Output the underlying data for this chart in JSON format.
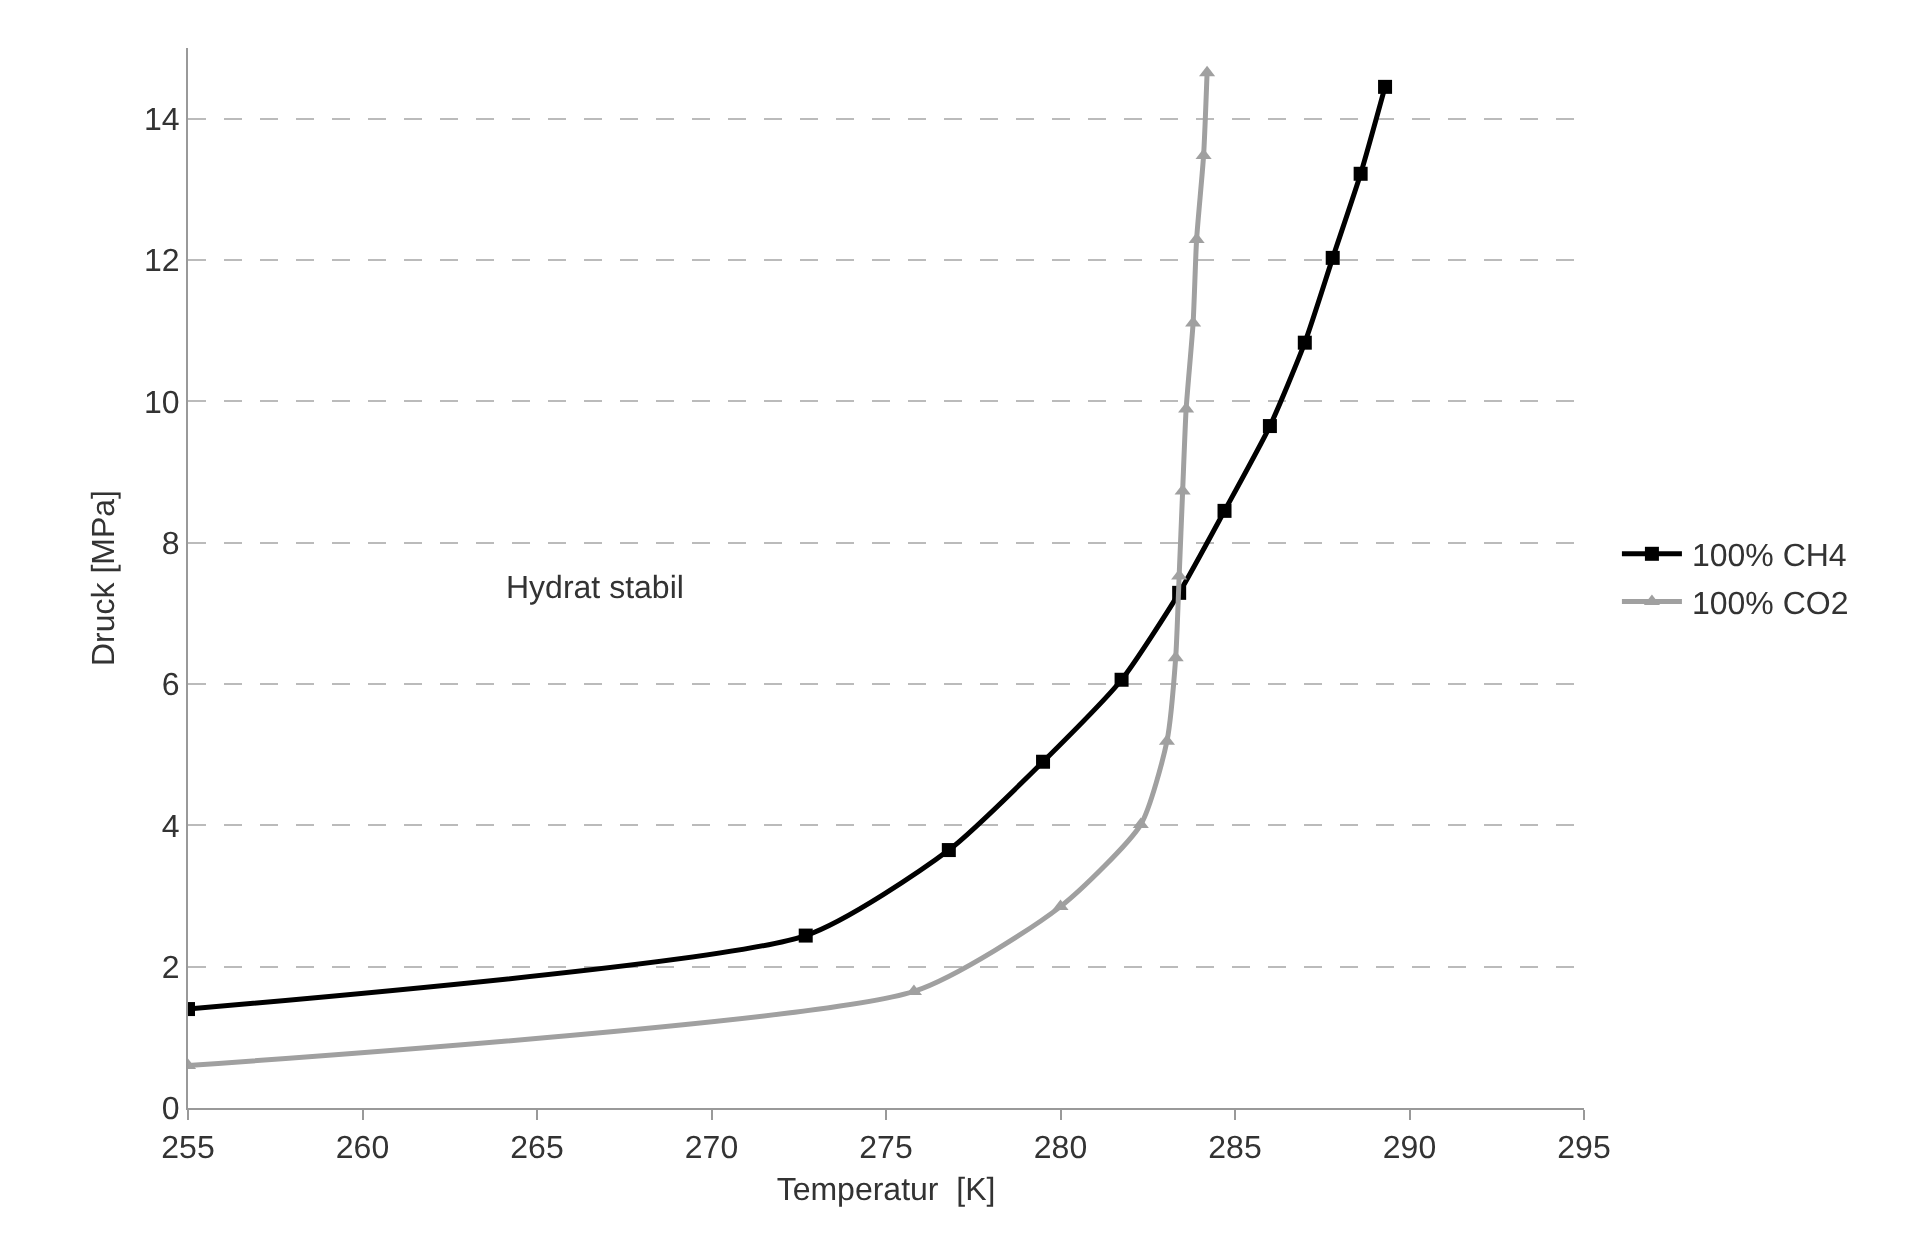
{
  "chart_data": {
    "type": "line",
    "xlabel": "Temperatur  [K]",
    "ylabel": "Druck [MPa]",
    "xlim": [
      255,
      295
    ],
    "xticks": [
      255,
      260,
      265,
      270,
      275,
      280,
      285,
      290,
      295
    ],
    "ylim": [
      0,
      15
    ],
    "yticks": [
      0,
      2,
      4,
      6,
      8,
      10,
      12,
      14
    ],
    "grid": "y",
    "legend": "right",
    "annotations": [
      "Hydrat stabil"
    ],
    "series": [
      {
        "name": "100% CH4",
        "color": "#000000",
        "marker": "square",
        "x": [
          255,
          272.7,
          276.8,
          279.5,
          281.75,
          283.4,
          284.7,
          286.0,
          287.0,
          287.8,
          288.6,
          289.3
        ],
        "values": [
          1.4,
          2.44,
          3.65,
          4.9,
          6.06,
          7.29,
          8.45,
          9.65,
          10.83,
          12.03,
          13.22,
          14.45
        ]
      },
      {
        "name": "100% CO2",
        "color": "#a0a0a0",
        "marker": "triangle",
        "x": [
          255,
          275.8,
          280.0,
          282.3,
          283.05,
          283.3,
          283.4,
          283.5,
          283.6,
          283.8,
          283.9,
          284.1,
          284.2
        ],
        "values": [
          0.6,
          1.65,
          2.85,
          4.01,
          5.19,
          6.37,
          7.53,
          8.73,
          9.89,
          11.11,
          12.29,
          13.48,
          14.65
        ]
      }
    ]
  }
}
